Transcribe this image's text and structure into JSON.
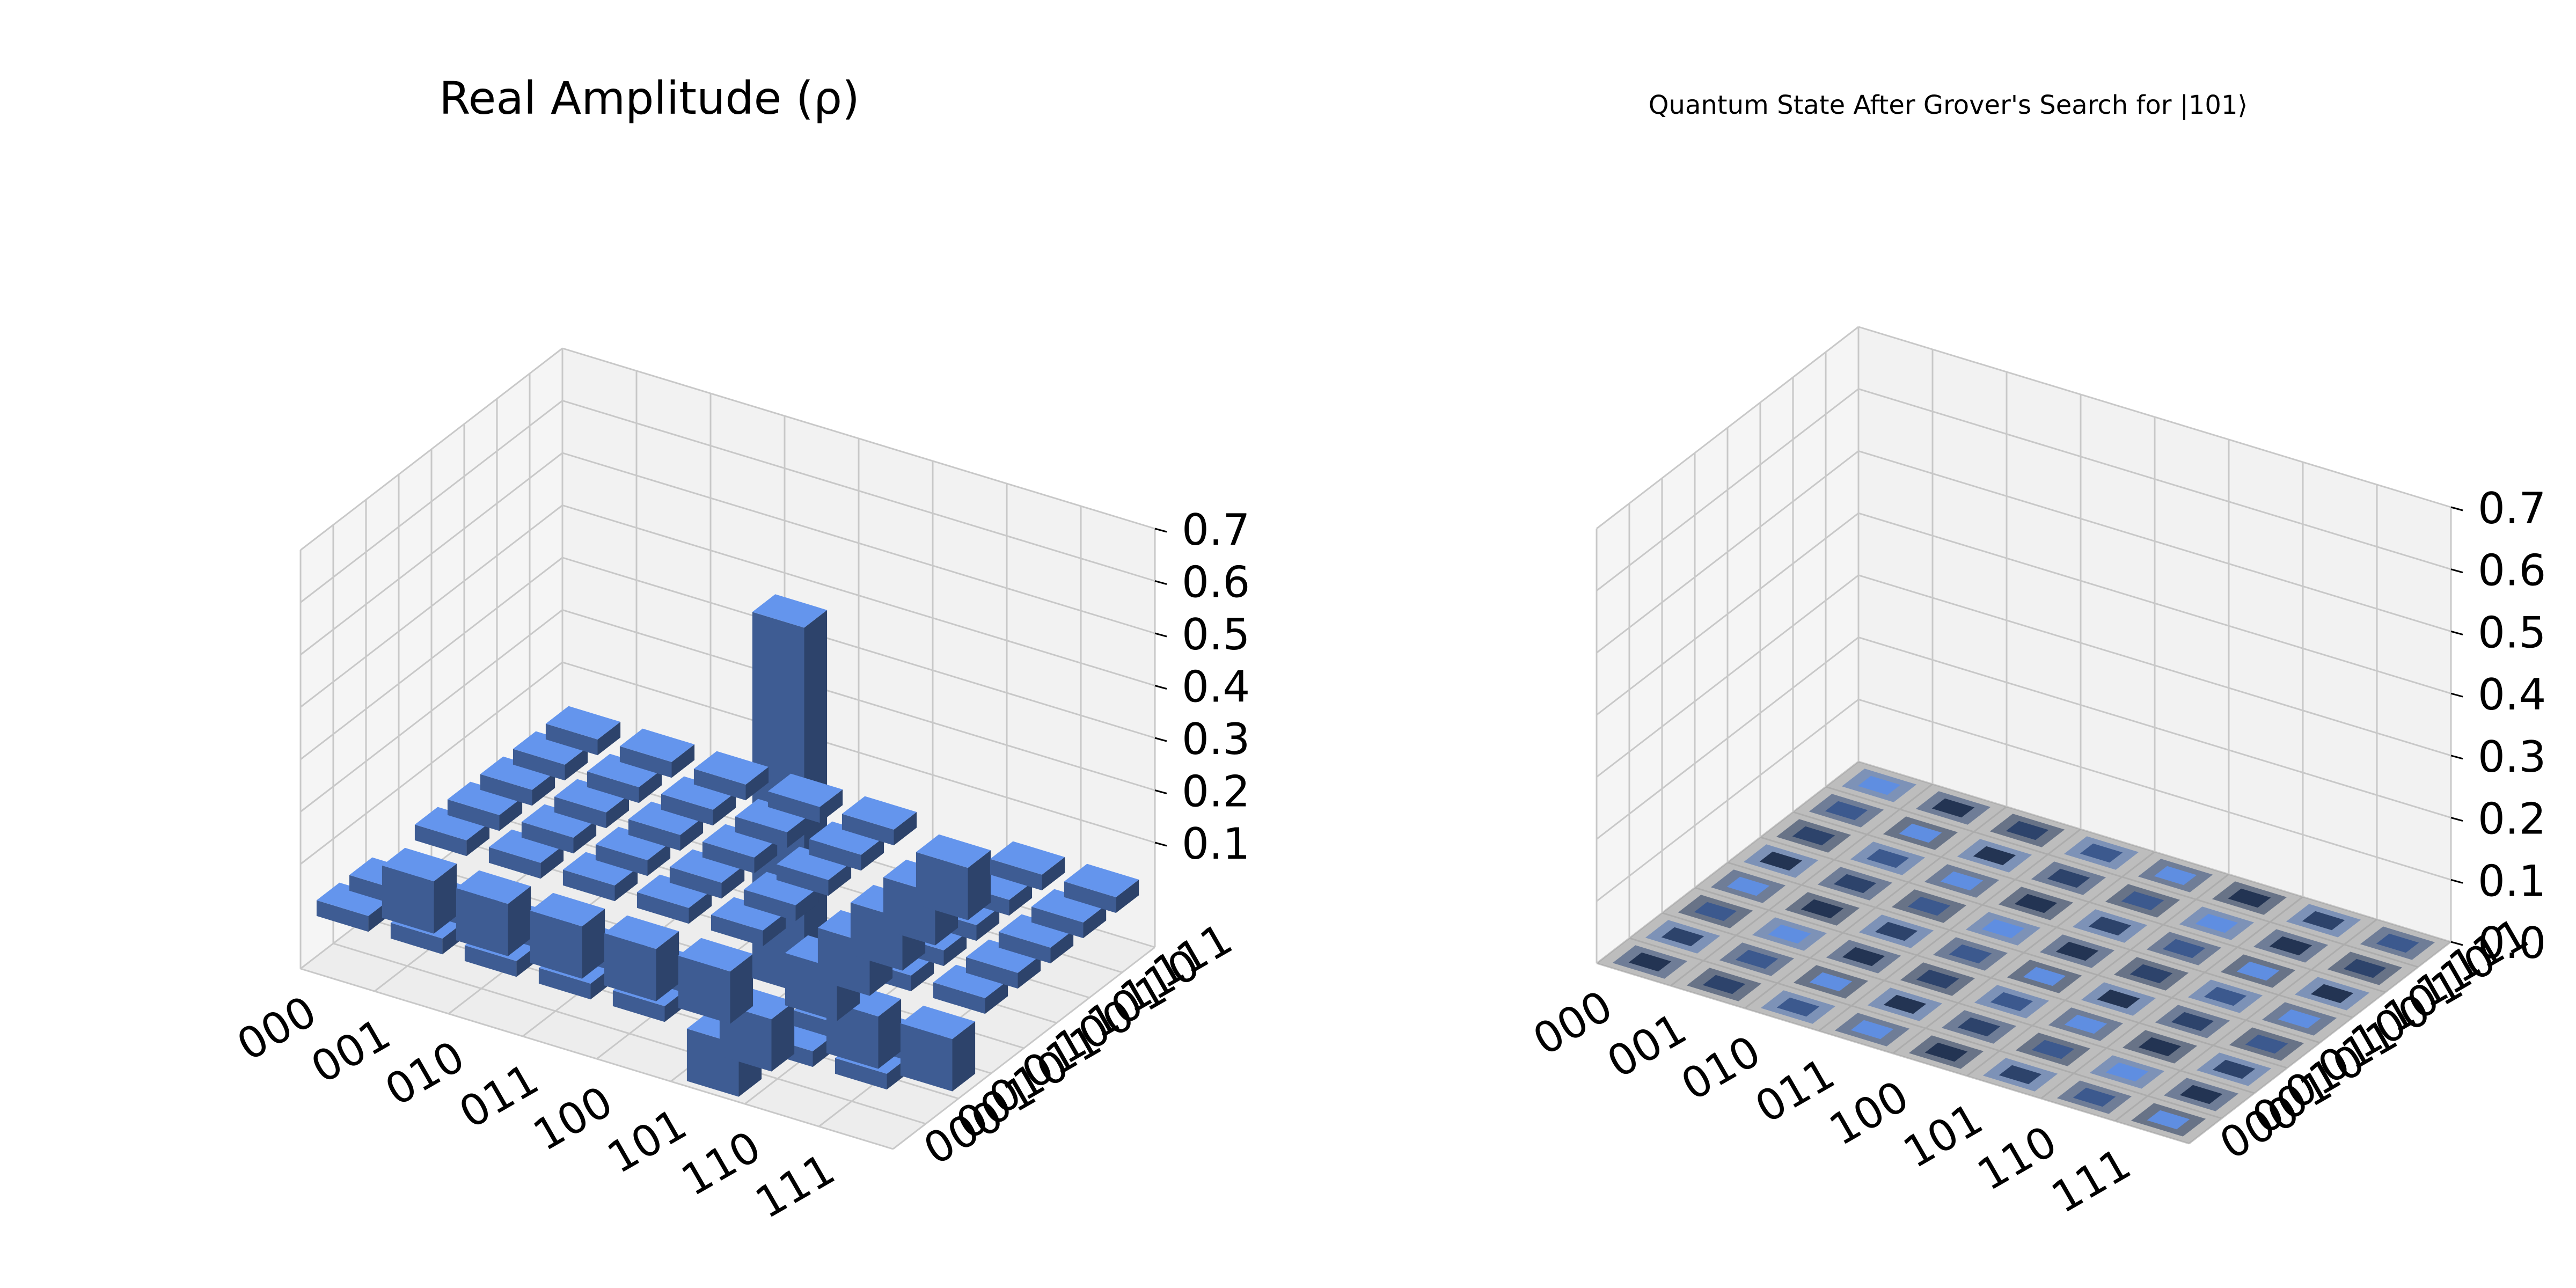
{
  "chart_data": [
    {
      "type": "bar3d",
      "title": "Real Amplitude (ρ)",
      "x_tick_labels": [
        "000",
        "001",
        "010",
        "011",
        "100",
        "101",
        "110",
        "111"
      ],
      "y_tick_labels": [
        "000",
        "001",
        "010",
        "011",
        "100",
        "101",
        "110",
        "111"
      ],
      "z_tick_labels": [
        "0.1",
        "0.2",
        "0.3",
        "0.4",
        "0.5",
        "0.6",
        "0.7"
      ],
      "zlim": [
        -0.1,
        0.7
      ],
      "grid": true,
      "bar_color": "#6495ed",
      "matrix": [
        [
          0.03,
          0.03,
          0.03,
          0.03,
          0.03,
          -0.1,
          0.03,
          0.03
        ],
        [
          0.03,
          0.03,
          0.03,
          0.03,
          0.03,
          -0.1,
          0.03,
          0.03
        ],
        [
          0.03,
          0.03,
          0.03,
          0.03,
          0.03,
          -0.1,
          0.03,
          0.03
        ],
        [
          0.03,
          0.03,
          0.03,
          0.03,
          0.03,
          -0.1,
          0.03,
          0.03
        ],
        [
          0.03,
          0.03,
          0.03,
          0.03,
          0.03,
          -0.1,
          0.03,
          0.03
        ],
        [
          -0.1,
          -0.1,
          -0.1,
          -0.1,
          -0.1,
          0.7,
          -0.1,
          -0.1
        ],
        [
          0.03,
          0.03,
          0.03,
          0.03,
          0.03,
          -0.1,
          0.03,
          0.03
        ],
        [
          0.03,
          0.03,
          0.03,
          0.03,
          0.03,
          -0.1,
          0.03,
          0.03
        ]
      ]
    },
    {
      "type": "bar3d",
      "title": "Quantum State After Grover's Search for |101⟩",
      "x_tick_labels": [
        "000",
        "001",
        "010",
        "011",
        "100",
        "101",
        "110",
        "111"
      ],
      "y_tick_labels": [
        "000",
        "001",
        "010",
        "011",
        "100",
        "101",
        "110",
        "111"
      ],
      "z_tick_labels": [
        "0.0",
        "0.1",
        "0.2",
        "0.3",
        "0.4",
        "0.5",
        "0.6",
        "0.7"
      ],
      "zlim": [
        0.0,
        0.7
      ],
      "grid": true,
      "bar_color": "#6495ed",
      "matrix": [
        [
          0,
          0,
          0,
          0,
          0,
          0,
          0,
          0
        ],
        [
          0,
          0,
          0,
          0,
          0,
          0,
          0,
          0
        ],
        [
          0,
          0,
          0,
          0,
          0,
          0,
          0,
          0
        ],
        [
          0,
          0,
          0,
          0,
          0,
          0,
          0,
          0
        ],
        [
          0,
          0,
          0,
          0,
          0,
          0,
          0,
          0
        ],
        [
          0,
          0,
          0,
          0,
          0,
          0,
          0,
          0
        ],
        [
          0,
          0,
          0,
          0,
          0,
          0,
          0,
          0
        ],
        [
          0,
          0,
          0,
          0,
          0,
          0,
          0,
          0
        ]
      ]
    }
  ]
}
